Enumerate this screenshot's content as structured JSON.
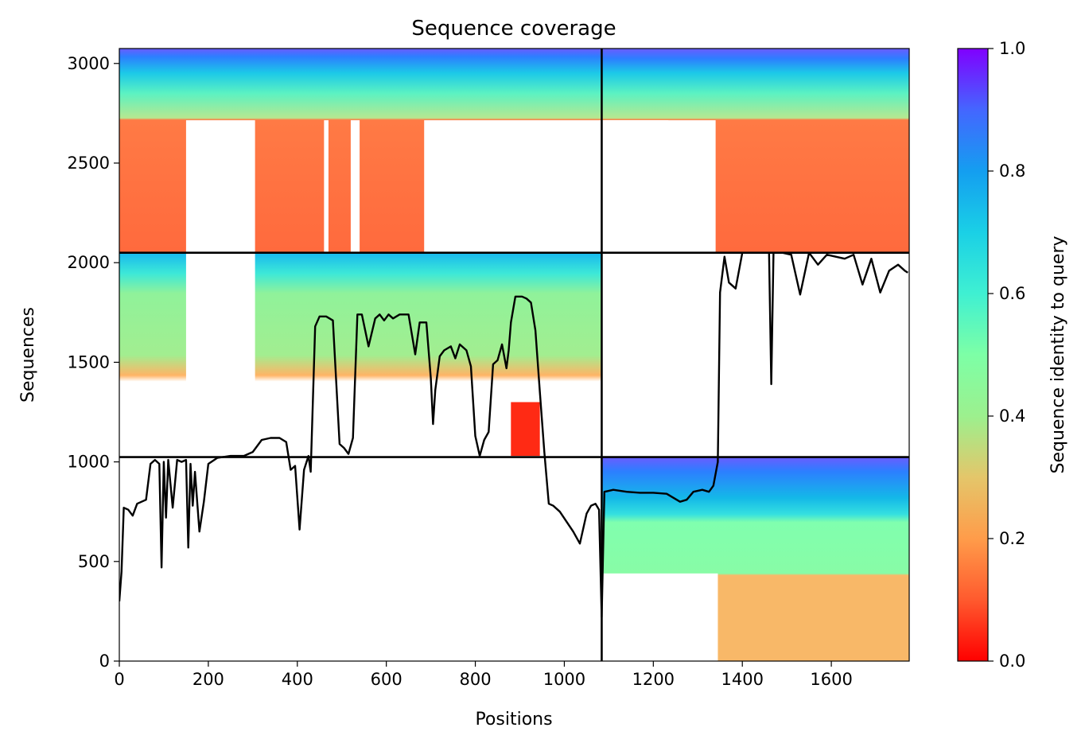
{
  "chart_data": {
    "type": "heatmap",
    "title": "Sequence coverage",
    "xlabel": "Positions",
    "ylabel": "Sequences",
    "xlim": [
      0,
      1775
    ],
    "ylim": [
      0,
      3075
    ],
    "x_ticks": [
      "0",
      "200",
      "400",
      "600",
      "800",
      "1000",
      "1200",
      "1400",
      "1600"
    ],
    "x_tick_values": [
      0,
      200,
      400,
      600,
      800,
      1000,
      1200,
      1400,
      1600
    ],
    "y_ticks": [
      "0",
      "500",
      "1000",
      "1500",
      "2000",
      "2500",
      "3000"
    ],
    "y_tick_values": [
      0,
      500,
      1000,
      1500,
      2000,
      2500,
      3000
    ],
    "colormap": "rainbow_r",
    "colorbar": {
      "label": "Sequence identity to query",
      "range": [
        0,
        1
      ],
      "ticks": [
        "0.0",
        "0.2",
        "0.4",
        "0.6",
        "0.8",
        "1.0"
      ],
      "tick_values": [
        0.0,
        0.2,
        0.4,
        0.6,
        0.8,
        1.0
      ]
    },
    "chain_boundaries": {
      "x": [
        1084
      ],
      "y": [
        1024,
        2050
      ]
    },
    "coverage_line": {
      "color": "#000000",
      "x": [
        0,
        5,
        10,
        20,
        30,
        40,
        50,
        60,
        70,
        80,
        90,
        95,
        100,
        105,
        110,
        120,
        130,
        140,
        150,
        155,
        160,
        165,
        170,
        180,
        190,
        200,
        220,
        250,
        280,
        300,
        320,
        340,
        360,
        375,
        385,
        395,
        405,
        415,
        425,
        430,
        440,
        450,
        455,
        465,
        480,
        495,
        505,
        515,
        525,
        535,
        545,
        560,
        575,
        585,
        595,
        605,
        615,
        630,
        650,
        665,
        675,
        690,
        700,
        705,
        710,
        720,
        730,
        745,
        755,
        765,
        780,
        790,
        800,
        810,
        820,
        830,
        840,
        850,
        860,
        870,
        875,
        880,
        890,
        905,
        915,
        925,
        935,
        945,
        955,
        965,
        975,
        990,
        1005,
        1020,
        1035,
        1050,
        1060,
        1070,
        1078,
        1084,
        1090,
        1110,
        1140,
        1170,
        1200,
        1230,
        1260,
        1275,
        1290,
        1310,
        1325,
        1335,
        1345,
        1350,
        1360,
        1370,
        1385,
        1400,
        1420,
        1440,
        1460,
        1465,
        1470,
        1490,
        1510,
        1530,
        1550,
        1570,
        1590,
        1610,
        1630,
        1650,
        1670,
        1690,
        1710,
        1730,
        1750,
        1765,
        1772
      ],
      "y": [
        300,
        450,
        770,
        760,
        730,
        790,
        800,
        810,
        990,
        1010,
        990,
        470,
        1000,
        720,
        1010,
        770,
        1010,
        1000,
        1010,
        570,
        990,
        780,
        950,
        650,
        800,
        990,
        1020,
        1030,
        1030,
        1050,
        1110,
        1120,
        1120,
        1100,
        960,
        980,
        660,
        960,
        1030,
        950,
        1680,
        1730,
        1730,
        1730,
        1710,
        1090,
        1070,
        1040,
        1120,
        1740,
        1740,
        1580,
        1720,
        1740,
        1710,
        1740,
        1720,
        1740,
        1740,
        1540,
        1700,
        1700,
        1420,
        1190,
        1360,
        1530,
        1560,
        1580,
        1520,
        1590,
        1560,
        1480,
        1130,
        1030,
        1110,
        1150,
        1490,
        1510,
        1590,
        1470,
        1560,
        1700,
        1830,
        1830,
        1820,
        1800,
        1660,
        1350,
        1050,
        790,
        780,
        750,
        700,
        650,
        590,
        740,
        780,
        790,
        760,
        220,
        850,
        860,
        850,
        845,
        845,
        840,
        800,
        810,
        850,
        860,
        850,
        880,
        1000,
        1850,
        2030,
        1900,
        1870,
        2050,
        2050,
        2050,
        2050,
        1390,
        2050,
        2050,
        2040,
        1840,
        2050,
        1990,
        2040,
        2030,
        2020,
        2040,
        1890,
        2020,
        1850,
        1960,
        1990,
        1960,
        1950
      ]
    },
    "msa_blocks": [
      {
        "name": "chain1",
        "x_range": [
          0,
          1084
        ],
        "sequence_range": [
          2050,
          3075
        ],
        "identity_top": 0.9,
        "identity_bottom": 0.15
      },
      {
        "name": "chain1-chain2",
        "x_range": [
          0,
          1084
        ],
        "sequence_range": [
          1024,
          2050
        ],
        "identity_top": 0.7,
        "identity_bottom": 0.08
      },
      {
        "name": "chain2-chain1",
        "x_range": [
          1084,
          1775
        ],
        "sequence_range": [
          2050,
          3075
        ],
        "identity_top": 0.9,
        "identity_bottom": 0.15
      },
      {
        "name": "chain2",
        "x_range": [
          1084,
          1775
        ],
        "sequence_range": [
          0,
          1024
        ],
        "identity_top": 0.95,
        "identity_bottom": 0.28
      }
    ]
  }
}
